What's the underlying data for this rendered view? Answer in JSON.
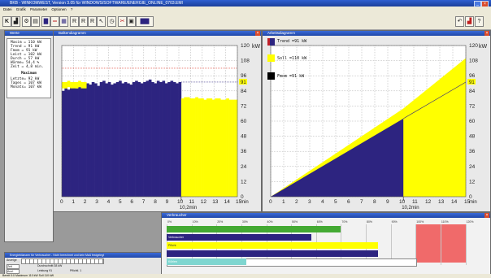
{
  "window": {
    "title": "BKB - WINKOMWEST, Version 3.05 für WINDOWS/SOFTWARE/ENERGIE_ONLINE_0703.EMI"
  },
  "menu": [
    "Datei",
    "Grafik",
    "Parameter",
    "Optionen",
    "?"
  ],
  "stats_window": {
    "title": "Werte",
    "rows": [
      "Maxim =     110 kW",
      "Trend =      91 kW",
      "Fmom  =      91 kW",
      "Leist =     102 kW",
      "Durch =      57 kW",
      "Wärme=    54,4 %",
      "Zeit   =    4,8 min."
    ],
    "section_title": "Maximum",
    "rows2": [
      "Letzte=      92 kW",
      "Tages =     107 kW",
      "Monats=    107 kW"
    ]
  },
  "bar_window": {
    "title": "Balkendiagramm",
    "unit_label": "kW",
    "x_unit": "min",
    "cursor_label": "10,2min",
    "marker_value": "91"
  },
  "cum_window": {
    "title": "Arbeitsdiagramm",
    "unit_label": "kW",
    "x_unit": "min",
    "cursor_label": "10,2min",
    "marker_value": "91",
    "legend": [
      {
        "label": "Trend =91 kW",
        "color": "#2d2480",
        "stripe": "#c0202a"
      },
      {
        "label": "Soll =110 kW",
        "color": "#ffff00"
      },
      {
        "label": "Fmom =91 kW",
        "color": "#000000"
      }
    ]
  },
  "hbar_window": {
    "title": "Verbraucher",
    "ticks": [
      "0%",
      "10%",
      "20%",
      "30%",
      "40%",
      "50%",
      "60%",
      "70%",
      "80%",
      "90%",
      "100%",
      "110%",
      "120%"
    ],
    "bars": [
      {
        "label": "",
        "color": "#44aa33",
        "fraction": 0.7
      },
      {
        "label": "Verbraucher",
        "color": "#2d2480",
        "fraction": 0.58
      },
      {
        "label": "Pflicht",
        "color": "#ffff00",
        "fraction": 0.85
      },
      {
        "label": "",
        "color": "#2d2480",
        "fraction": 0.85
      },
      {
        "label": "Kühlen",
        "color": "#7fd6d0",
        "fraction": 0.32
      }
    ],
    "red_zone_color": "#f06a6a"
  },
  "task_window": {
    "title": "Energiebilanzen für Verbraucher - Nicht berechnet und kein Maß festgelegt",
    "row1_label": "Anzeige",
    "cells_row2": [
      "Zeit",
      "Durchschnitt 38 kW"
    ],
    "cells_row3": [
      "Ausl.",
      "Leistung  91",
      "Pflichtl. 1"
    ]
  },
  "statusbar": {
    "text": "Bereit   0:0   Maximum 110 kW   Soll 110 kW"
  },
  "chart_data": [
    {
      "type": "bar",
      "title": "Balkendiagramm",
      "xlabel": "min",
      "ylabel": "kW",
      "x_ticks": [
        0,
        1,
        2,
        3,
        4,
        5,
        6,
        7,
        8,
        9,
        10,
        11,
        12,
        13,
        14,
        15
      ],
      "y_ticks": [
        0,
        12,
        24,
        36,
        48,
        60,
        72,
        84,
        96,
        108,
        120
      ],
      "xlim": [
        0,
        15
      ],
      "ylim": [
        0,
        120
      ],
      "limit_line": 102,
      "marker": 91,
      "cursor_x": 10.2,
      "series": [
        {
          "color": "#2d2480",
          "x_range": [
            0,
            10.2
          ],
          "values": [
            84,
            86,
            85,
            87,
            88,
            86,
            87,
            89,
            88,
            90,
            89,
            91,
            90,
            88,
            91,
            92,
            90,
            91,
            89,
            90,
            91,
            92,
            90,
            91,
            90,
            89,
            91,
            92,
            91,
            90,
            91,
            92,
            93,
            91,
            90,
            92,
            91,
            92,
            90,
            91,
            92,
            91,
            90,
            91
          ]
        },
        {
          "color": "#ffff00",
          "x_range": [
            0,
            2.1
          ],
          "values": [
            91,
            91,
            92,
            91,
            91,
            91,
            92,
            91,
            91
          ]
        },
        {
          "color": "#ffff00",
          "x_range": [
            10.2,
            15
          ],
          "values": [
            78,
            79,
            79,
            78,
            78,
            79,
            78,
            78,
            77,
            78,
            78,
            77,
            78,
            78,
            77,
            77,
            78,
            77,
            77,
            77
          ]
        }
      ]
    },
    {
      "type": "area",
      "title": "Arbeitsdiagramm",
      "xlabel": "min",
      "ylabel": "kW",
      "x_ticks": [
        0,
        1,
        2,
        3,
        4,
        5,
        6,
        7,
        8,
        9,
        10,
        11,
        12,
        13,
        14,
        15
      ],
      "y_ticks": [
        0,
        12,
        24,
        36,
        48,
        60,
        72,
        84,
        96,
        108,
        120
      ],
      "xlim": [
        0,
        15
      ],
      "ylim": [
        0,
        120
      ],
      "marker": 91,
      "cursor_x": 10.2,
      "series": [
        {
          "name": "Trend",
          "color": "#2d2480",
          "x": [
            0,
            10.2
          ],
          "y": [
            0,
            62
          ]
        },
        {
          "name": "Soll",
          "color": "#ffff00",
          "x": [
            0,
            10.2,
            15
          ],
          "y": [
            0,
            70,
            110
          ]
        }
      ]
    }
  ]
}
